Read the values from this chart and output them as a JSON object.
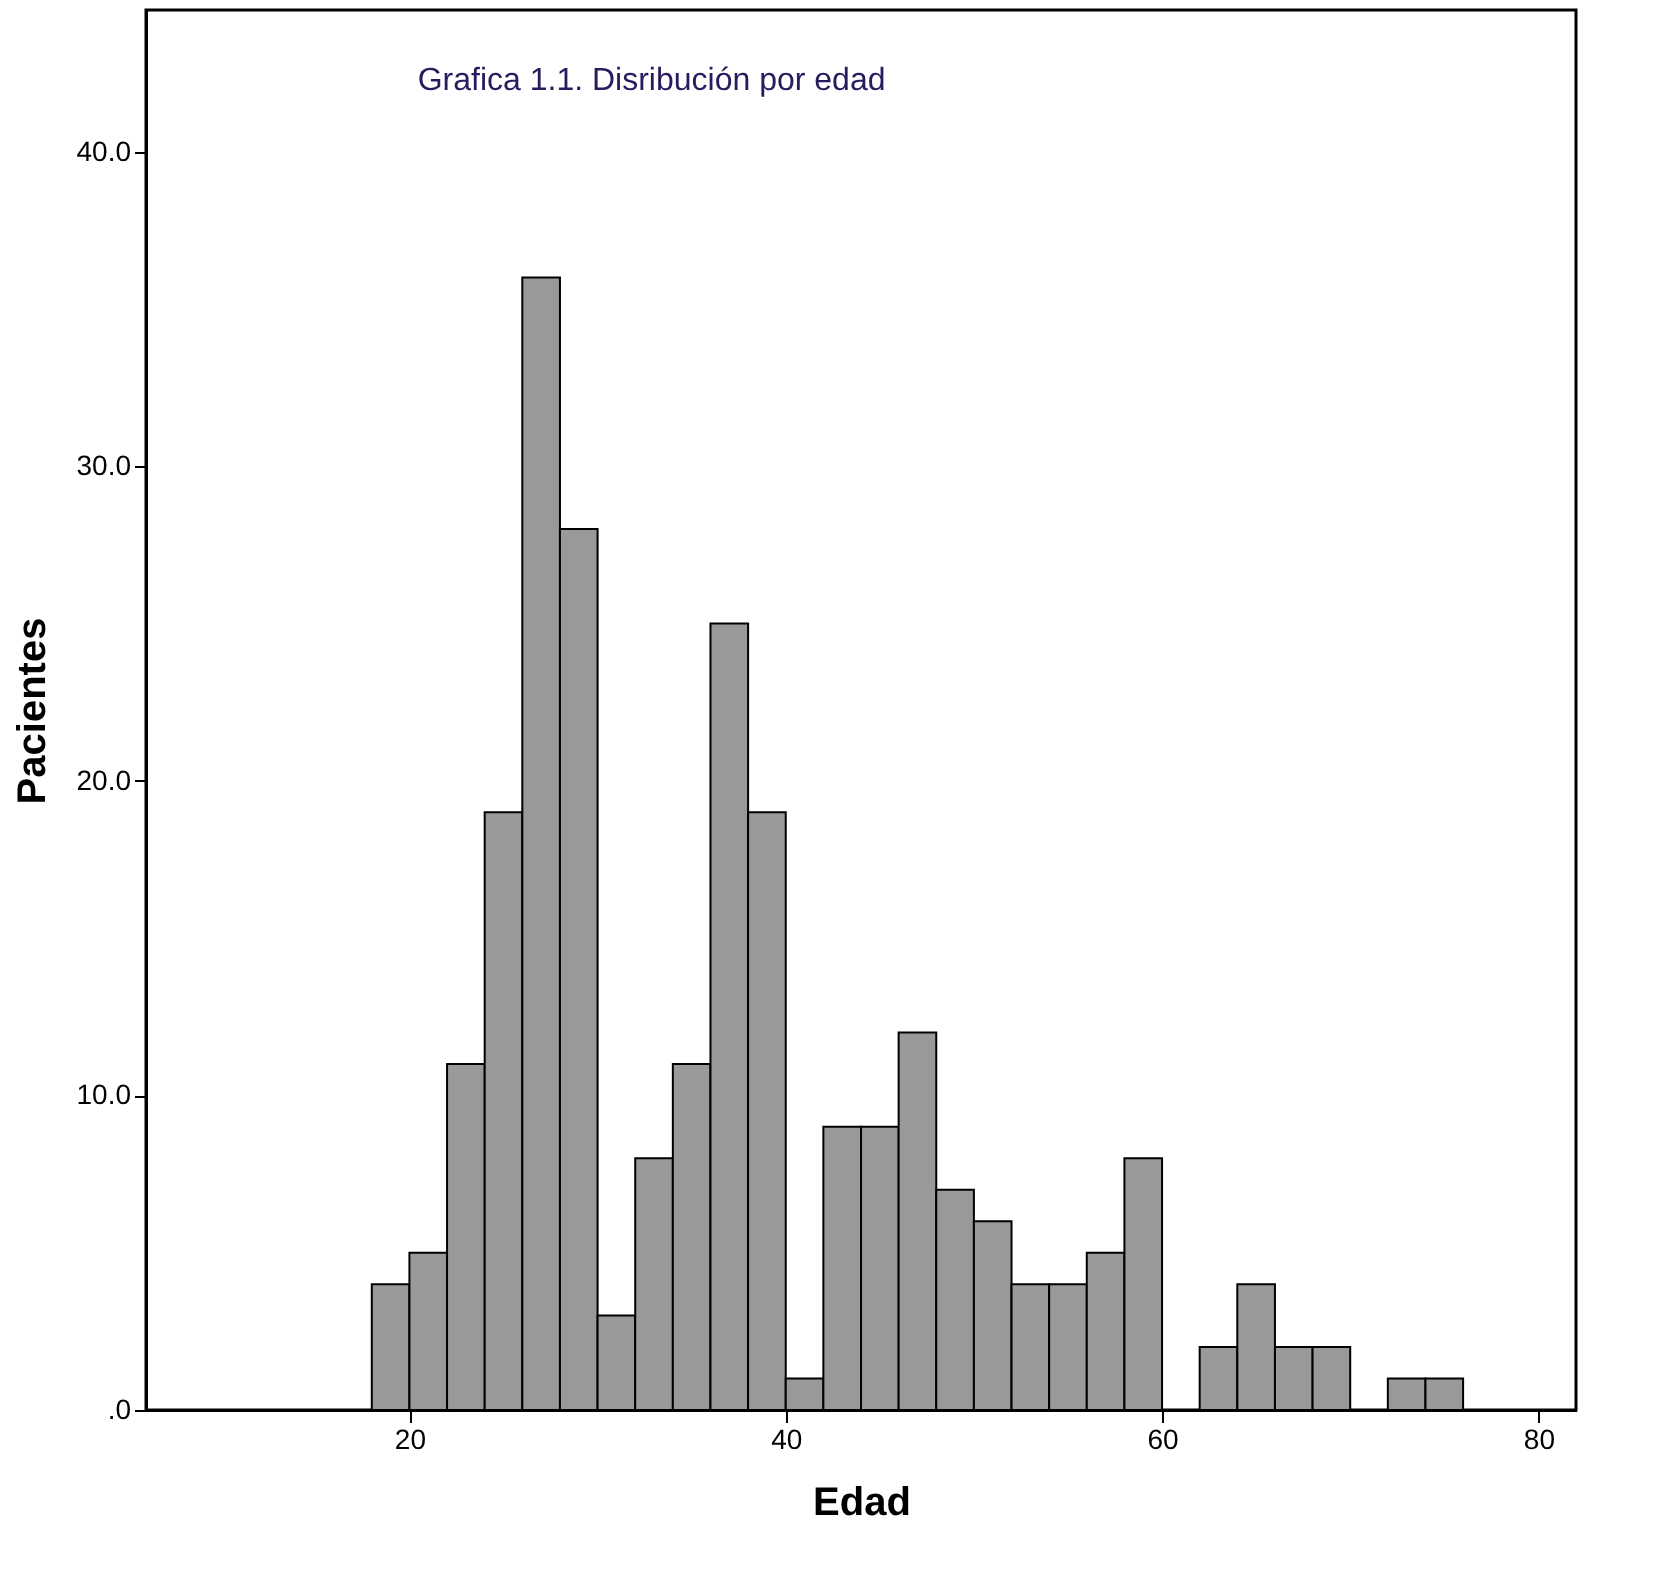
{
  "chart_data": {
    "type": "histogram",
    "title": "Grafica 1.1. Disribución por edad",
    "xlabel": "Edad",
    "ylabel": "Pacientes",
    "bins": [
      18,
      20,
      22,
      24,
      26,
      28,
      30,
      32,
      34,
      36,
      38,
      40,
      42,
      44,
      46,
      48,
      50,
      52,
      54,
      56,
      58,
      60,
      62,
      64,
      66,
      68,
      70,
      72,
      74,
      76
    ],
    "values": [
      4,
      5,
      11,
      19,
      36,
      28,
      3,
      8,
      11,
      25,
      19,
      1,
      9,
      9,
      12,
      7,
      6,
      4,
      4,
      5,
      8,
      0,
      2,
      4,
      2,
      2,
      0,
      1,
      1
    ],
    "color": "#999999",
    "xlim": [
      6,
      82
    ],
    "ylim": [
      0,
      44.5
    ],
    "xticks": [
      20,
      40,
      60,
      80
    ],
    "yticks": [
      {
        "value": 0,
        "label": ".0"
      },
      {
        "value": 10,
        "label": "10.0"
      },
      {
        "value": 20,
        "label": "20.0"
      },
      {
        "value": 30,
        "label": "30.0"
      },
      {
        "value": 40,
        "label": "40.0"
      }
    ],
    "grid": false
  }
}
